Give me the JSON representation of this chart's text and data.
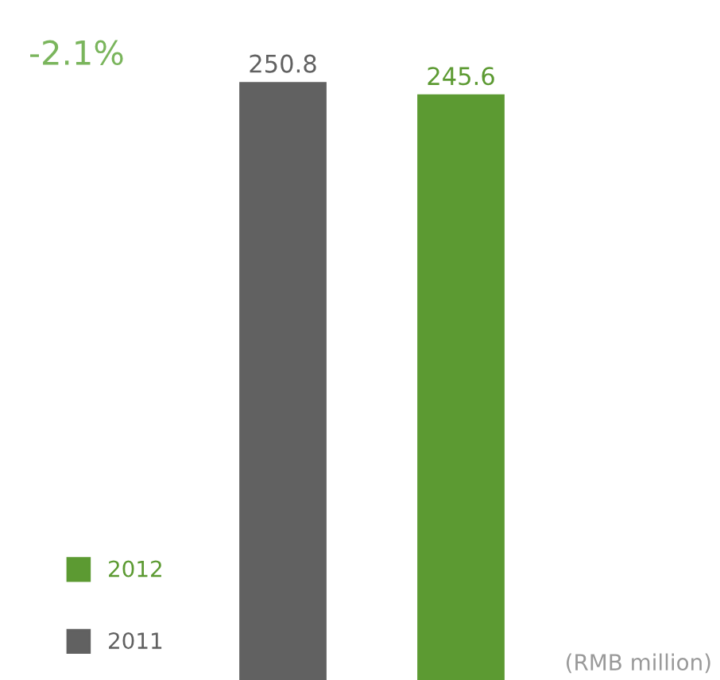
{
  "chart_data": {
    "type": "bar",
    "categories": [
      null,
      null
    ],
    "series": [
      {
        "name": "2011",
        "color": "#616161",
        "values": [
          250.8,
          null
        ]
      },
      {
        "name": "2012",
        "color": "#5c9a32",
        "values": [
          null,
          245.6
        ]
      }
    ],
    "stacked": true,
    "data_labels": true,
    "legend": "bottom left",
    "annotations": [
      "-2.1%",
      "(RMB million)"
    ]
  }
}
